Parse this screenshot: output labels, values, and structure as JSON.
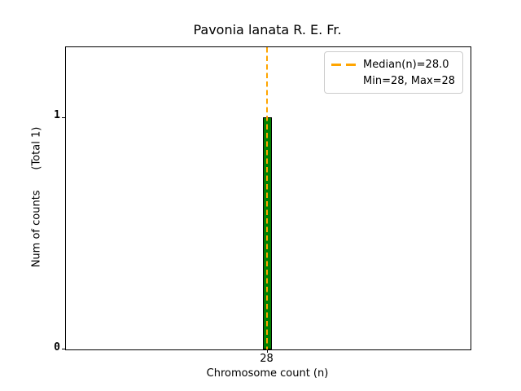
{
  "chart_data": {
    "type": "bar",
    "title": "Pavonia lanata R. E. Fr.",
    "xlabel": "Chromosome count (n)",
    "ylabel": "Num of counts      (Total 1)",
    "categories": [
      28
    ],
    "values": [
      1
    ],
    "total_counts": 1,
    "x_tick_labels": [
      "28"
    ],
    "y_tick_labels": {
      "zero": "0",
      "one": "1"
    },
    "ylim": [
      0,
      1.3
    ],
    "grid": false,
    "median": 28.0,
    "min": 28,
    "max": 28,
    "median_line": {
      "x": 28,
      "style": "dashed",
      "orientation": "vertical"
    },
    "legend": {
      "position": "upper right",
      "items": [
        {
          "label": "Median(n)=28.0",
          "marker": "orange-dashed-line"
        },
        {
          "label": "Min=28, Max=28",
          "marker": "none"
        }
      ]
    },
    "colors": {
      "bar_fill": "#008000",
      "bar_edge": "#000000",
      "median_line": "#FFA500",
      "spine": "#000000",
      "legend_border": "#cccccc",
      "text": "#000000",
      "background": "#ffffff"
    }
  }
}
